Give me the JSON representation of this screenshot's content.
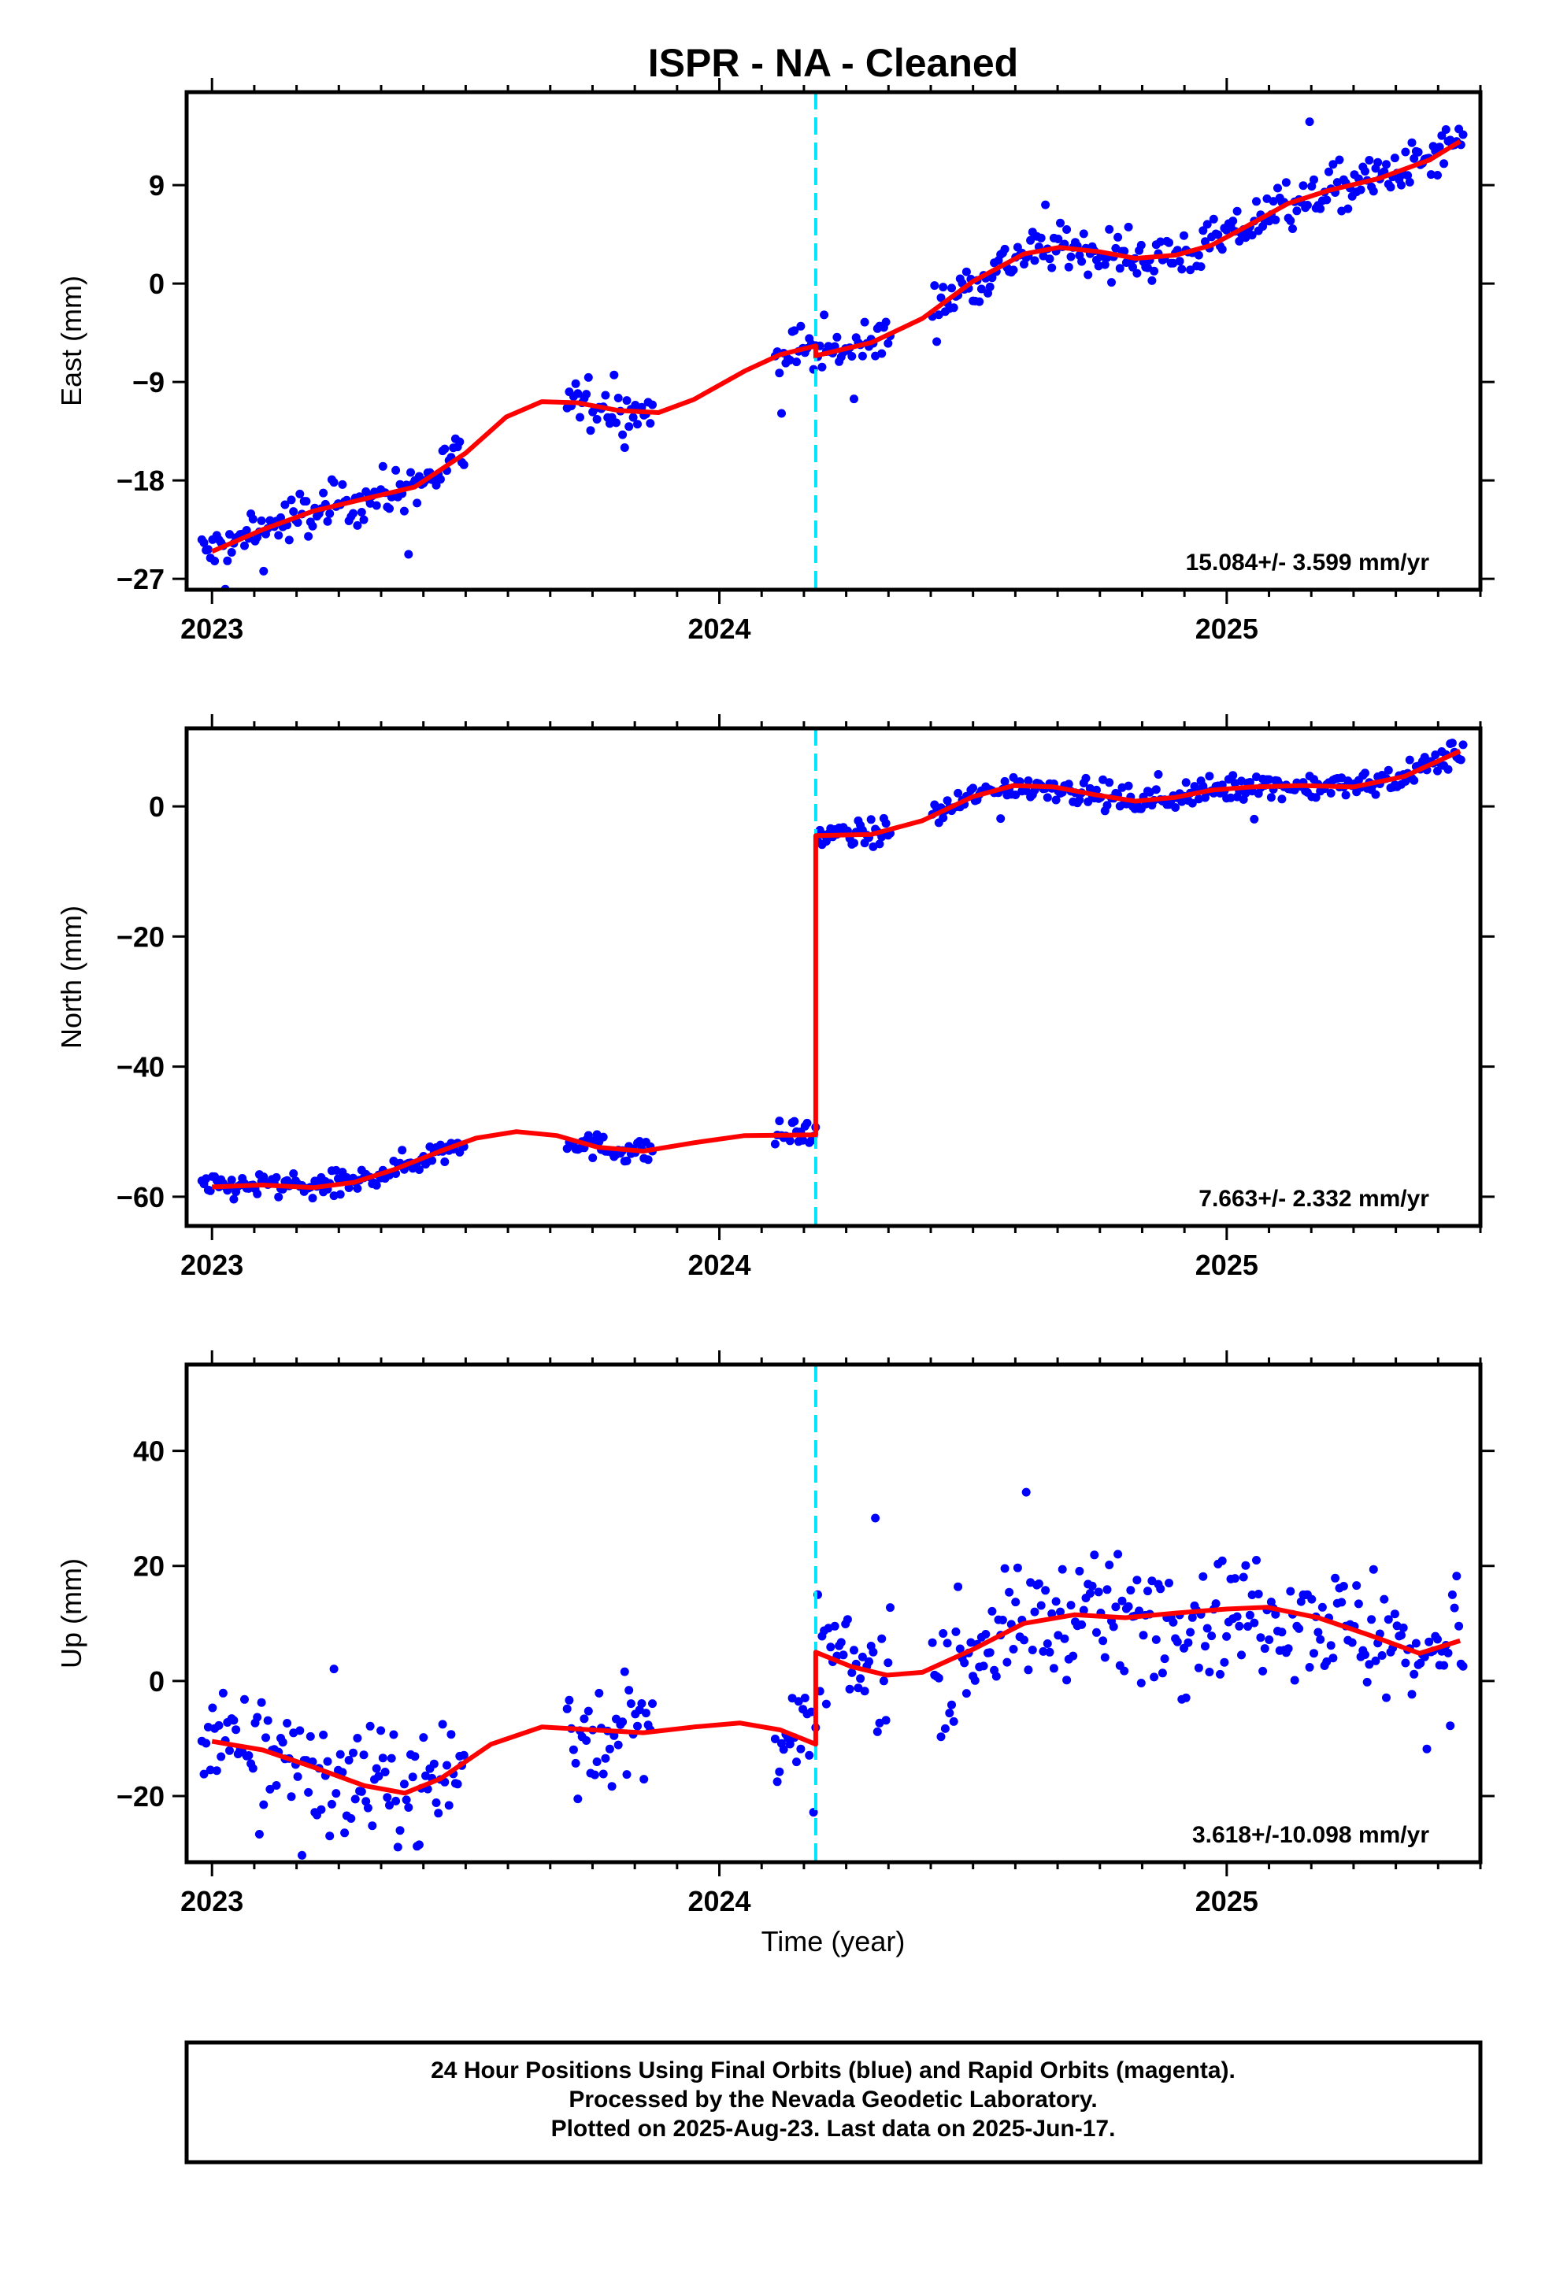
{
  "title": "ISPR  - NA - Cleaned",
  "colors": {
    "data": "#0000ff",
    "model": "#ff0000",
    "break": "#00e5ff",
    "frame": "#000000"
  },
  "xlabel": "Time (year)",
  "footer": {
    "line1": "24 Hour Positions Using Final Orbits (blue) and Rapid Orbits (magenta).",
    "line2": "Processed by the Nevada Geodetic Laboratory.",
    "line3": "Plotted on 2025-Aug-23. Last data on 2025-Jun-17."
  },
  "chart_data": [
    {
      "type": "scatter",
      "panel": "east",
      "ylabel": "East (mm)",
      "rate_label": "15.084+/- 3.599 mm/yr",
      "xlim": [
        2022.95,
        2025.5
      ],
      "ylim": [
        -28,
        17.5
      ],
      "x_ticks": [
        2023,
        2024,
        2025
      ],
      "x_tick_labels": [
        "2023",
        "2024",
        "2025"
      ],
      "y_ticks": [
        -27,
        -18,
        -9,
        0,
        9
      ],
      "y_tick_labels": [
        "−27",
        "−18",
        "−9",
        "0",
        "9"
      ],
      "break_x": 2024.19,
      "model": [
        [
          2023.0,
          -24.5
        ],
        [
          2023.1,
          -22.5
        ],
        [
          2023.2,
          -20.8
        ],
        [
          2023.3,
          -19.7
        ],
        [
          2023.4,
          -18.6
        ],
        [
          2023.5,
          -15.5
        ],
        [
          2023.58,
          -12.2
        ],
        [
          2023.65,
          -10.8
        ],
        [
          2023.72,
          -10.9
        ],
        [
          2023.8,
          -11.6
        ],
        [
          2023.88,
          -11.8
        ],
        [
          2023.95,
          -10.6
        ],
        [
          2024.05,
          -8.0
        ],
        [
          2024.12,
          -6.5
        ],
        [
          2024.19,
          -5.7
        ],
        [
          2024.19,
          -6.6
        ],
        [
          2024.3,
          -5.4
        ],
        [
          2024.4,
          -3.2
        ],
        [
          2024.5,
          0.2
        ],
        [
          2024.6,
          2.7
        ],
        [
          2024.67,
          3.3
        ],
        [
          2024.75,
          2.9
        ],
        [
          2024.82,
          2.3
        ],
        [
          2024.9,
          2.6
        ],
        [
          2024.97,
          3.5
        ],
        [
          2025.05,
          5.5
        ],
        [
          2025.12,
          7.3
        ],
        [
          2025.2,
          8.5
        ],
        [
          2025.3,
          9.6
        ],
        [
          2025.4,
          11.3
        ],
        [
          2025.46,
          13.0
        ]
      ]
    },
    {
      "type": "scatter",
      "panel": "north",
      "ylabel": "North (mm)",
      "rate_label": "7.663+/- 2.332 mm/yr",
      "xlim": [
        2022.95,
        2025.5
      ],
      "ylim": [
        -64.5,
        12
      ],
      "x_ticks": [
        2023,
        2024,
        2025
      ],
      "x_tick_labels": [
        "2023",
        "2024",
        "2025"
      ],
      "y_ticks": [
        -60,
        -40,
        -20,
        0
      ],
      "y_tick_labels": [
        "−60",
        "−40",
        "−20",
        "0"
      ],
      "break_x": 2024.19,
      "model": [
        [
          2023.0,
          -58.5
        ],
        [
          2023.1,
          -58.2
        ],
        [
          2023.2,
          -58.6
        ],
        [
          2023.28,
          -57.8
        ],
        [
          2023.36,
          -55.8
        ],
        [
          2023.45,
          -53.0
        ],
        [
          2023.52,
          -51.0
        ],
        [
          2023.6,
          -50.0
        ],
        [
          2023.68,
          -50.6
        ],
        [
          2023.76,
          -52.4
        ],
        [
          2023.85,
          -53.0
        ],
        [
          2023.95,
          -51.7
        ],
        [
          2024.05,
          -50.6
        ],
        [
          2024.19,
          -50.5
        ],
        [
          2024.19,
          -4.5
        ],
        [
          2024.3,
          -4.3
        ],
        [
          2024.4,
          -2.2
        ],
        [
          2024.5,
          1.5
        ],
        [
          2024.58,
          3.2
        ],
        [
          2024.66,
          3.0
        ],
        [
          2024.74,
          1.8
        ],
        [
          2024.82,
          0.8
        ],
        [
          2024.9,
          1.4
        ],
        [
          2024.97,
          2.5
        ],
        [
          2025.05,
          3.0
        ],
        [
          2025.15,
          3.2
        ],
        [
          2025.25,
          3.0
        ],
        [
          2025.35,
          4.6
        ],
        [
          2025.46,
          8.5
        ]
      ]
    },
    {
      "type": "scatter",
      "panel": "up",
      "ylabel": "Up (mm)",
      "rate_label": "3.618+/-10.098 mm/yr",
      "xlim": [
        2022.95,
        2025.5
      ],
      "ylim": [
        -31.5,
        55
      ],
      "x_ticks": [
        2023,
        2024,
        2025
      ],
      "x_tick_labels": [
        "2023",
        "2024",
        "2025"
      ],
      "y_ticks": [
        -20,
        0,
        20,
        40
      ],
      "y_tick_labels": [
        "−20",
        "0",
        "20",
        "40"
      ],
      "break_x": 2024.19,
      "model": [
        [
          2023.0,
          -10.5
        ],
        [
          2023.1,
          -12.0
        ],
        [
          2023.2,
          -15.0
        ],
        [
          2023.3,
          -18.2
        ],
        [
          2023.38,
          -19.5
        ],
        [
          2023.45,
          -17.0
        ],
        [
          2023.55,
          -11.0
        ],
        [
          2023.65,
          -8.0
        ],
        [
          2023.75,
          -8.5
        ],
        [
          2023.85,
          -9.0
        ],
        [
          2023.95,
          -8.0
        ],
        [
          2024.04,
          -7.3
        ],
        [
          2024.12,
          -8.5
        ],
        [
          2024.19,
          -11.0
        ],
        [
          2024.19,
          5.0
        ],
        [
          2024.26,
          2.5
        ],
        [
          2024.33,
          1.0
        ],
        [
          2024.4,
          1.5
        ],
        [
          2024.5,
          5.5
        ],
        [
          2024.6,
          10.0
        ],
        [
          2024.7,
          11.5
        ],
        [
          2024.8,
          11.0
        ],
        [
          2024.9,
          11.8
        ],
        [
          2025.0,
          12.5
        ],
        [
          2025.08,
          12.8
        ],
        [
          2025.18,
          11.0
        ],
        [
          2025.28,
          8.0
        ],
        [
          2025.38,
          4.8
        ],
        [
          2025.46,
          7.0
        ]
      ]
    }
  ]
}
